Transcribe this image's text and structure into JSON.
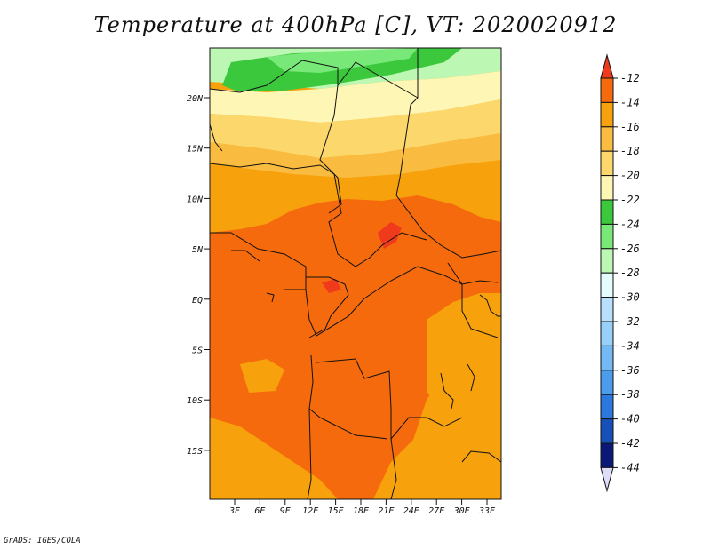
{
  "title": "Temperature at 400hPa [C], VT: 2020020912",
  "credit": "GrADS: IGES/COLA",
  "map": {
    "lat_labels": [
      "20N",
      "15N",
      "10N",
      "5N",
      "EQ",
      "5S",
      "10S",
      "15S"
    ],
    "lon_labels": [
      "3E",
      "6E",
      "9E",
      "12E",
      "15E",
      "18E",
      "21E",
      "24E",
      "27E",
      "30E",
      "33E"
    ]
  },
  "colorbar": {
    "levels": [
      "-12",
      "-14",
      "-16",
      "-18",
      "-20",
      "-22",
      "-24",
      "-26",
      "-28",
      "-30",
      "-32",
      "-34",
      "-36",
      "-38",
      "-40",
      "-42",
      "-44"
    ],
    "colors": [
      "#ef3a1c",
      "#f56a0c",
      "#f7a20c",
      "#f9bb40",
      "#fcd86c",
      "#fef6b4",
      "#3cc83c",
      "#78e878",
      "#bcf8b4",
      "#e4fcfc",
      "#b8e0fc",
      "#98d0fa",
      "#74b8f4",
      "#4c9cec",
      "#2c78dc",
      "#1650b8",
      "#0c1878",
      "#ddddf8"
    ]
  }
}
